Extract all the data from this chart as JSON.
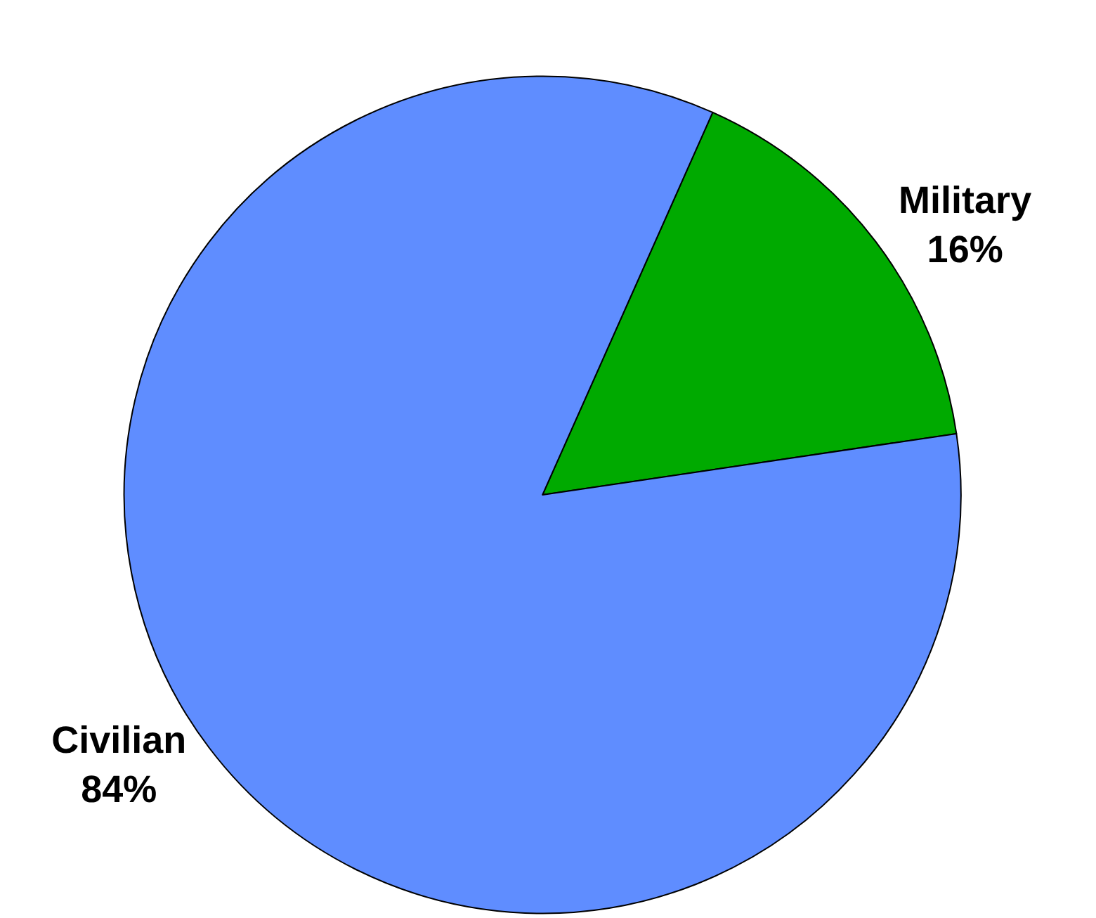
{
  "chart_data": {
    "type": "pie",
    "categories": [
      "Military",
      "Civilian"
    ],
    "values": [
      16,
      84
    ],
    "colors": [
      "#00aa00",
      "#5f8dff"
    ],
    "value_labels": [
      "16%",
      "84%"
    ],
    "legend": false
  }
}
